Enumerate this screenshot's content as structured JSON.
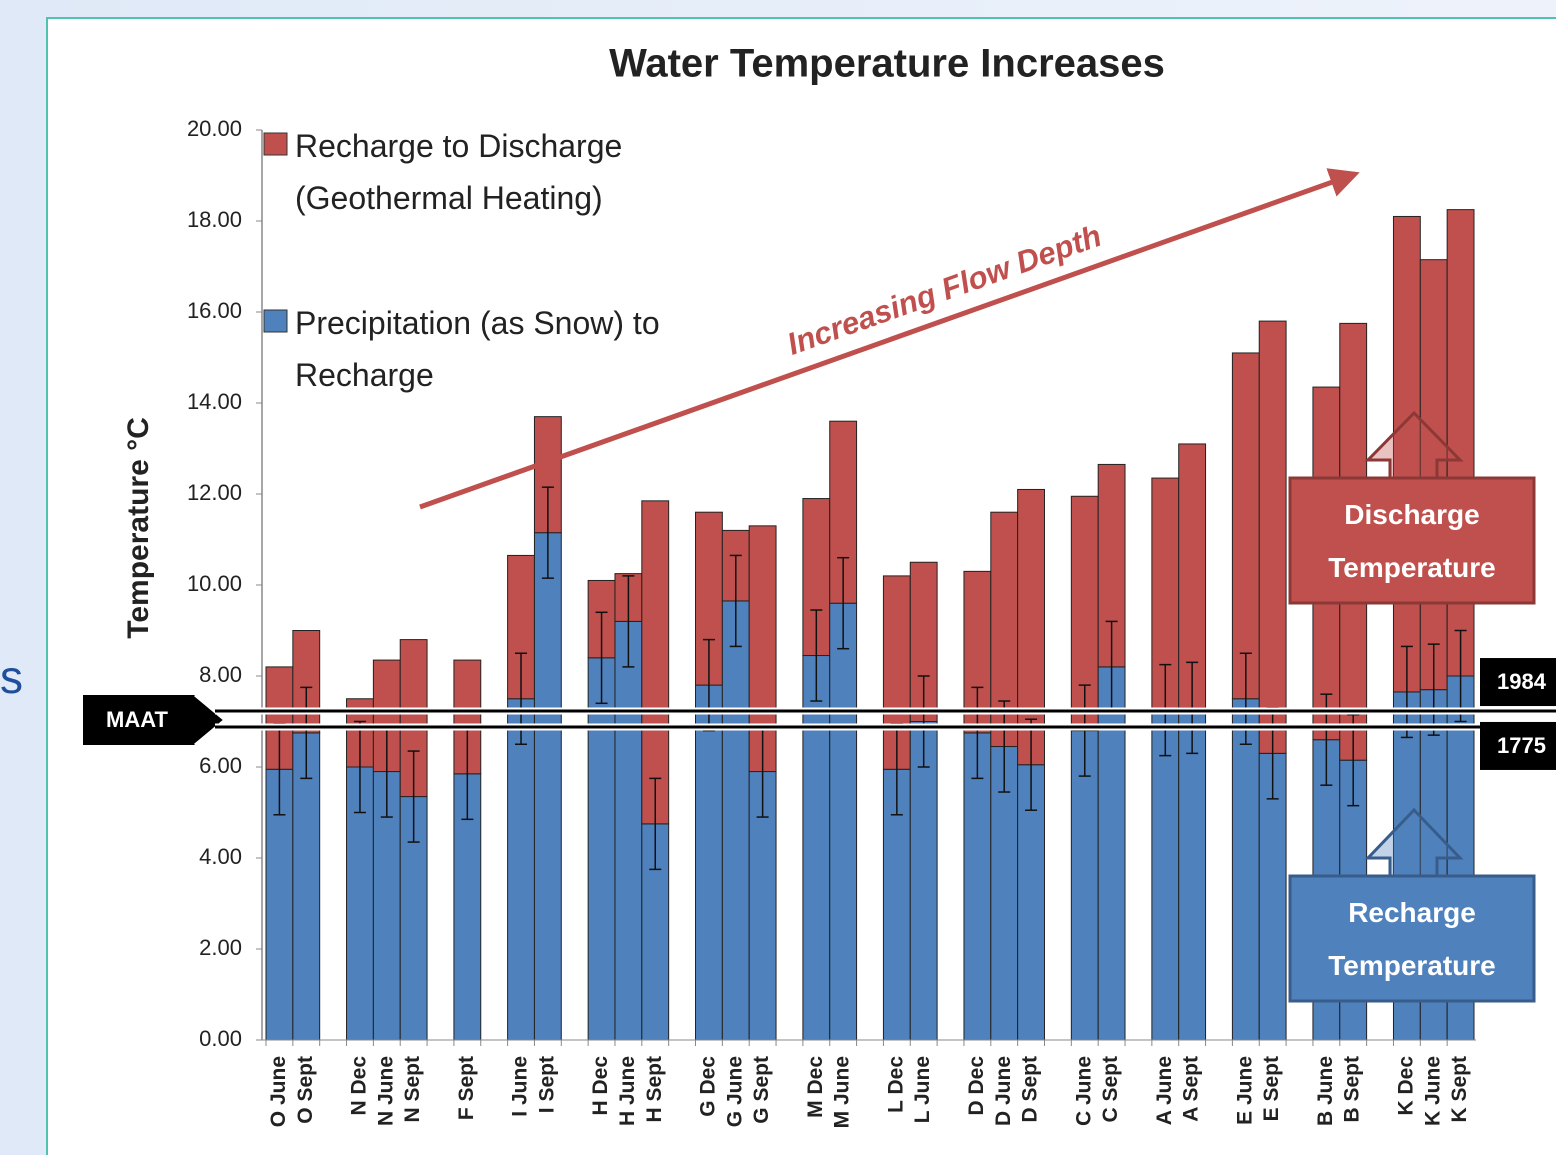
{
  "side_text": "s",
  "chart_data": {
    "type": "stacked_bar",
    "title": "Water Temperature Increases",
    "y_label": "Temperature °C",
    "categories": [
      "O June",
      "O Sept",
      null,
      "N Dec",
      "N June",
      "N Sept",
      null,
      "F Sept",
      null,
      "I June",
      "I Sept",
      null,
      "H Dec",
      "H June",
      "H Sept",
      null,
      "G Dec",
      "G June",
      "G Sept",
      null,
      "M Dec",
      "M June",
      null,
      "L Dec",
      "L June",
      null,
      "D Dec",
      "D June",
      "D Sept",
      null,
      "C June",
      "C Sept",
      null,
      "A June",
      "A Sept",
      null,
      "E June",
      "E Sept",
      null,
      "B June",
      "B Sept",
      null,
      "K Dec",
      "K June",
      "K Sept"
    ],
    "series": [
      {
        "name": "Precipitation (as Snow) to Recharge",
        "color": "#4f81bd",
        "values": [
          5.95,
          6.75,
          null,
          6.0,
          5.9,
          5.35,
          null,
          5.85,
          null,
          7.5,
          11.15,
          null,
          8.4,
          9.2,
          4.75,
          null,
          7.8,
          9.65,
          5.9,
          null,
          8.45,
          9.6,
          null,
          5.95,
          7.0,
          null,
          6.75,
          6.45,
          6.05,
          null,
          6.8,
          8.2,
          null,
          7.25,
          7.3,
          null,
          7.5,
          6.3,
          null,
          6.6,
          6.15,
          null,
          7.65,
          7.7,
          8.0
        ],
        "errors": [
          1,
          1,
          null,
          1,
          1,
          1,
          null,
          1,
          null,
          1,
          1,
          null,
          1,
          1,
          1,
          null,
          1,
          1,
          1,
          null,
          1,
          1,
          null,
          1,
          1,
          null,
          1,
          1,
          1,
          null,
          1,
          1,
          null,
          1,
          1,
          null,
          1,
          1,
          null,
          1,
          1,
          null,
          1,
          1,
          1
        ]
      },
      {
        "name": "Recharge to Discharge (Geothermal Heating)",
        "color": "#c0504d",
        "values": [
          2.25,
          2.25,
          null,
          1.5,
          2.45,
          3.45,
          null,
          2.5,
          null,
          3.15,
          2.55,
          null,
          1.7,
          1.05,
          7.1,
          null,
          3.8,
          1.55,
          5.4,
          null,
          3.45,
          4.0,
          null,
          4.25,
          3.5,
          null,
          3.55,
          5.15,
          6.05,
          null,
          5.15,
          4.45,
          null,
          5.1,
          5.8,
          null,
          7.6,
          9.5,
          null,
          7.75,
          9.6,
          null,
          10.45,
          9.45,
          10.25
        ]
      }
    ],
    "ylim": [
      0,
      20
    ],
    "yticks": [
      {
        "value": 0,
        "label": "0.00"
      },
      {
        "value": 2,
        "label": "2.00"
      },
      {
        "value": 4,
        "label": "4.00"
      },
      {
        "value": 6,
        "label": "6.00"
      },
      {
        "value": 8,
        "label": "8.00"
      },
      {
        "value": 10,
        "label": "10.00"
      },
      {
        "value": 12,
        "label": "12.00"
      },
      {
        "value": 14,
        "label": "14.00"
      },
      {
        "value": 16,
        "label": "16.00"
      },
      {
        "value": 18,
        "label": "18.00"
      },
      {
        "value": 20,
        "label": "20.00"
      }
    ],
    "annotation": "Increasing Flow Depth",
    "reference_label": "MAAT",
    "reference_lines": [
      {
        "label": "1984",
        "value": 7.23
      },
      {
        "label": "1775",
        "value": 6.88
      }
    ],
    "boxes": [
      {
        "label": "Discharge Temperature",
        "color": "#c0504d"
      },
      {
        "label": "Recharge Temperature",
        "color": "#4f81bd"
      }
    ]
  }
}
